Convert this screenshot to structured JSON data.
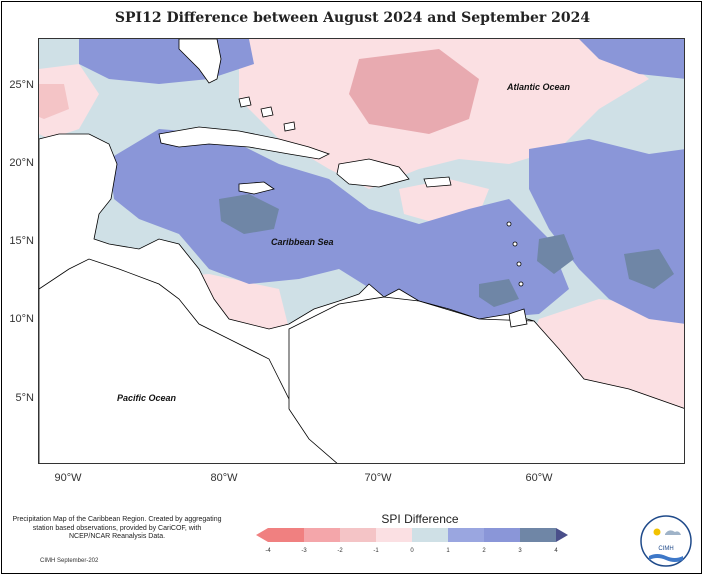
{
  "title": "SPI12 Difference between August 2024 and September 2024",
  "latitudes": [
    "25°N",
    "20°N",
    "15°N",
    "10°N",
    "5°N"
  ],
  "longitudes": [
    "90°W",
    "80°W",
    "70°W",
    "60°W"
  ],
  "labels": {
    "atlantic": "Atlantic Ocean",
    "caribbean": "Caribbean Sea",
    "pacific": "Pacific Ocean"
  },
  "footnote": "Precipitation Map of the Caribbean Region. Created by aggregating station based observations, provided by CariCOF, with NCEP/NCAR Reanalysis Data.",
  "credit": "CIMH September-202",
  "legend": {
    "title": "SPI Difference",
    "ticks": [
      "-4",
      "-3",
      "-2",
      "-1",
      "0",
      "1",
      "2",
      "3",
      "4"
    ],
    "colors": [
      "#f08080",
      "#f4a6aa",
      "#f4c4c6",
      "#fbe0e3",
      "#cfe0e6",
      "#9aa6e0",
      "#8a96d8",
      "#6f86a6",
      "#4a4f8a"
    ]
  },
  "logo_text": "CIMH",
  "colors": {
    "neg_strong": "#e8aab0",
    "neg_mild": "#fbe0e3",
    "neutral": "#cfe0e6",
    "pos_mild": "#8a96d8",
    "pos_strong": "#6f86a6",
    "land": "#ffffff"
  }
}
